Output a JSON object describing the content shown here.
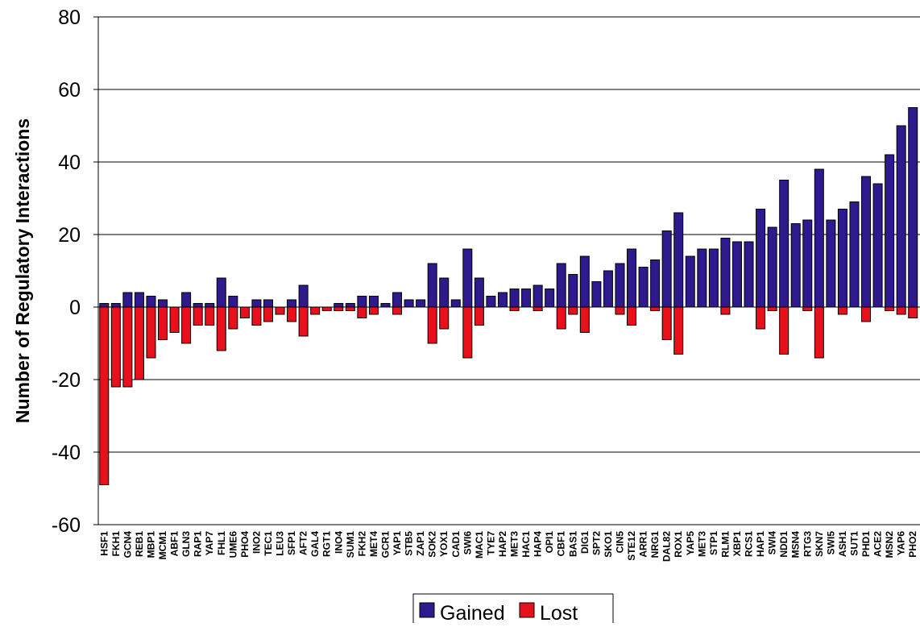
{
  "chart_data": {
    "type": "bar",
    "title": "",
    "xlabel": "",
    "ylabel": "Number of Regulatory Interactions",
    "ylim": [
      -60,
      80
    ],
    "yticks": [
      -60,
      -40,
      -20,
      0,
      20,
      40,
      60,
      80
    ],
    "grid": true,
    "legend_position": "bottom-center",
    "categories": [
      "HSF1",
      "FKH1",
      "GCN4",
      "REB1",
      "MBP1",
      "MCM1",
      "ABF1",
      "GLN3",
      "RAP1",
      "YAP7",
      "FHL1",
      "UME6",
      "PHO4",
      "INO2",
      "TEC1",
      "LEU3",
      "SFP1",
      "AFT2",
      "GAL4",
      "RGT1",
      "INO4",
      "SUM1",
      "FKH2",
      "MET4",
      "GCR1",
      "YAP1",
      "STB5",
      "ZAP1",
      "SOK2",
      "YOX1",
      "CAD1",
      "SWI6",
      "MAC1",
      "TYE7",
      "HAP2",
      "MET3",
      "HAC1",
      "HAP4",
      "OPI1",
      "CBF1",
      "BAS1",
      "DIG1",
      "SPT2",
      "SKO1",
      "CIN5",
      "STE12",
      "ARR1",
      "NRG1",
      "DAL82",
      "ROX1",
      "YAP5",
      "MET3",
      "STP1",
      "RLM1",
      "XBP1",
      "RCS1",
      "HAP1",
      "SWI4",
      "NDD1",
      "MSN4",
      "RTG3",
      "SKN7",
      "SWI5",
      "ASH1",
      "SUT1",
      "PHD1",
      "ACE2",
      "MSN2",
      "YAP6",
      "PHO2"
    ],
    "series": [
      {
        "name": "Gained",
        "color": "#2e1a8c",
        "values": [
          1,
          1,
          4,
          4,
          3,
          2,
          0,
          4,
          1,
          1,
          8,
          3,
          0,
          2,
          2,
          0,
          2,
          6,
          0,
          0,
          1,
          1,
          3,
          3,
          1,
          4,
          2,
          2,
          12,
          8,
          2,
          16,
          8,
          3,
          4,
          5,
          5,
          6,
          5,
          12,
          9,
          14,
          7,
          10,
          12,
          16,
          11,
          13,
          21,
          26,
          14,
          16,
          16,
          19,
          18,
          18,
          27,
          22,
          35,
          23,
          24,
          38,
          24,
          27,
          29,
          36,
          34,
          42,
          50,
          55
        ]
      },
      {
        "name": "Lost",
        "color": "#e8101a",
        "values": [
          -49,
          -22,
          -22,
          -20,
          -14,
          -9,
          -7,
          -10,
          -5,
          -5,
          -12,
          -6,
          -3,
          -5,
          -4,
          -2,
          -4,
          -8,
          -2,
          -1,
          -1,
          -1,
          -3,
          -2,
          0,
          -2,
          0,
          0,
          -10,
          -6,
          0,
          -14,
          -5,
          0,
          0,
          -1,
          0,
          -1,
          0,
          -6,
          -2,
          -7,
          0,
          0,
          -2,
          -5,
          0,
          -1,
          -9,
          -13,
          0,
          0,
          0,
          -2,
          0,
          0,
          -6,
          -1,
          -13,
          0,
          -1,
          -14,
          0,
          -2,
          0,
          -4,
          0,
          -1,
          -2,
          -3
        ]
      }
    ]
  }
}
